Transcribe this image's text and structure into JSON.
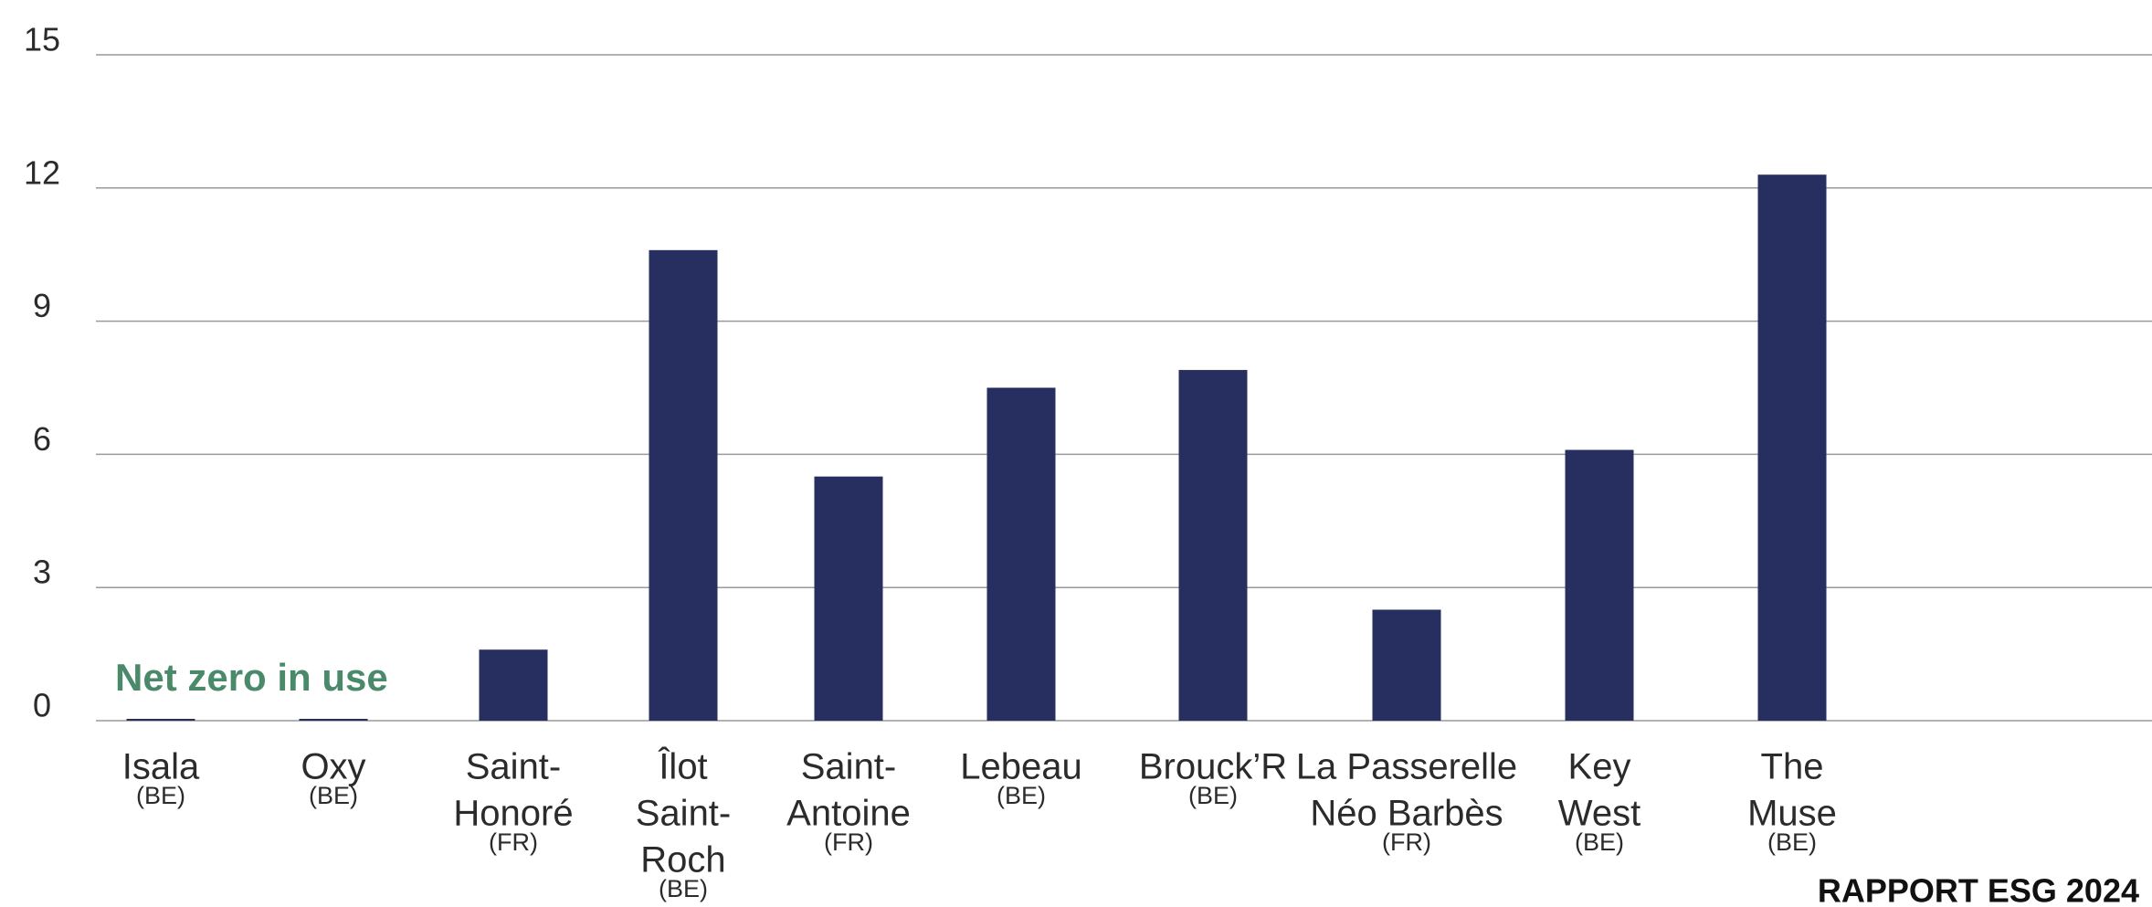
{
  "chart_data": {
    "type": "bar",
    "categories": [
      [
        "Isala"
      ],
      [
        "Oxy"
      ],
      [
        "Saint-",
        "Honoré"
      ],
      [
        "Îlot",
        "Saint-",
        "Roch"
      ],
      [
        "Saint-",
        "Antoine"
      ],
      [
        "Lebeau"
      ],
      [
        "Brouck’R"
      ],
      [
        "La Passerelle",
        "Néo Barbès"
      ],
      [
        "Key",
        "West"
      ],
      [
        "The",
        "Muse"
      ]
    ],
    "countries": [
      "(BE)",
      "(BE)",
      "(FR)",
      "(BE)",
      "(FR)",
      "(BE)",
      "(BE)",
      "(FR)",
      "(BE)",
      "(BE)"
    ],
    "values": [
      0,
      0,
      1.6,
      10.6,
      5.5,
      7.5,
      7.9,
      2.5,
      6.1,
      12.3
    ],
    "color": "#262f60",
    "ylim": [
      0,
      15
    ],
    "yticks": [
      0,
      3,
      6,
      9,
      12,
      15
    ],
    "grid": true,
    "annotation": "Net zero in use",
    "annotation_color": "#4a8a6a",
    "footer": "RAPPORT ESG 2024"
  }
}
